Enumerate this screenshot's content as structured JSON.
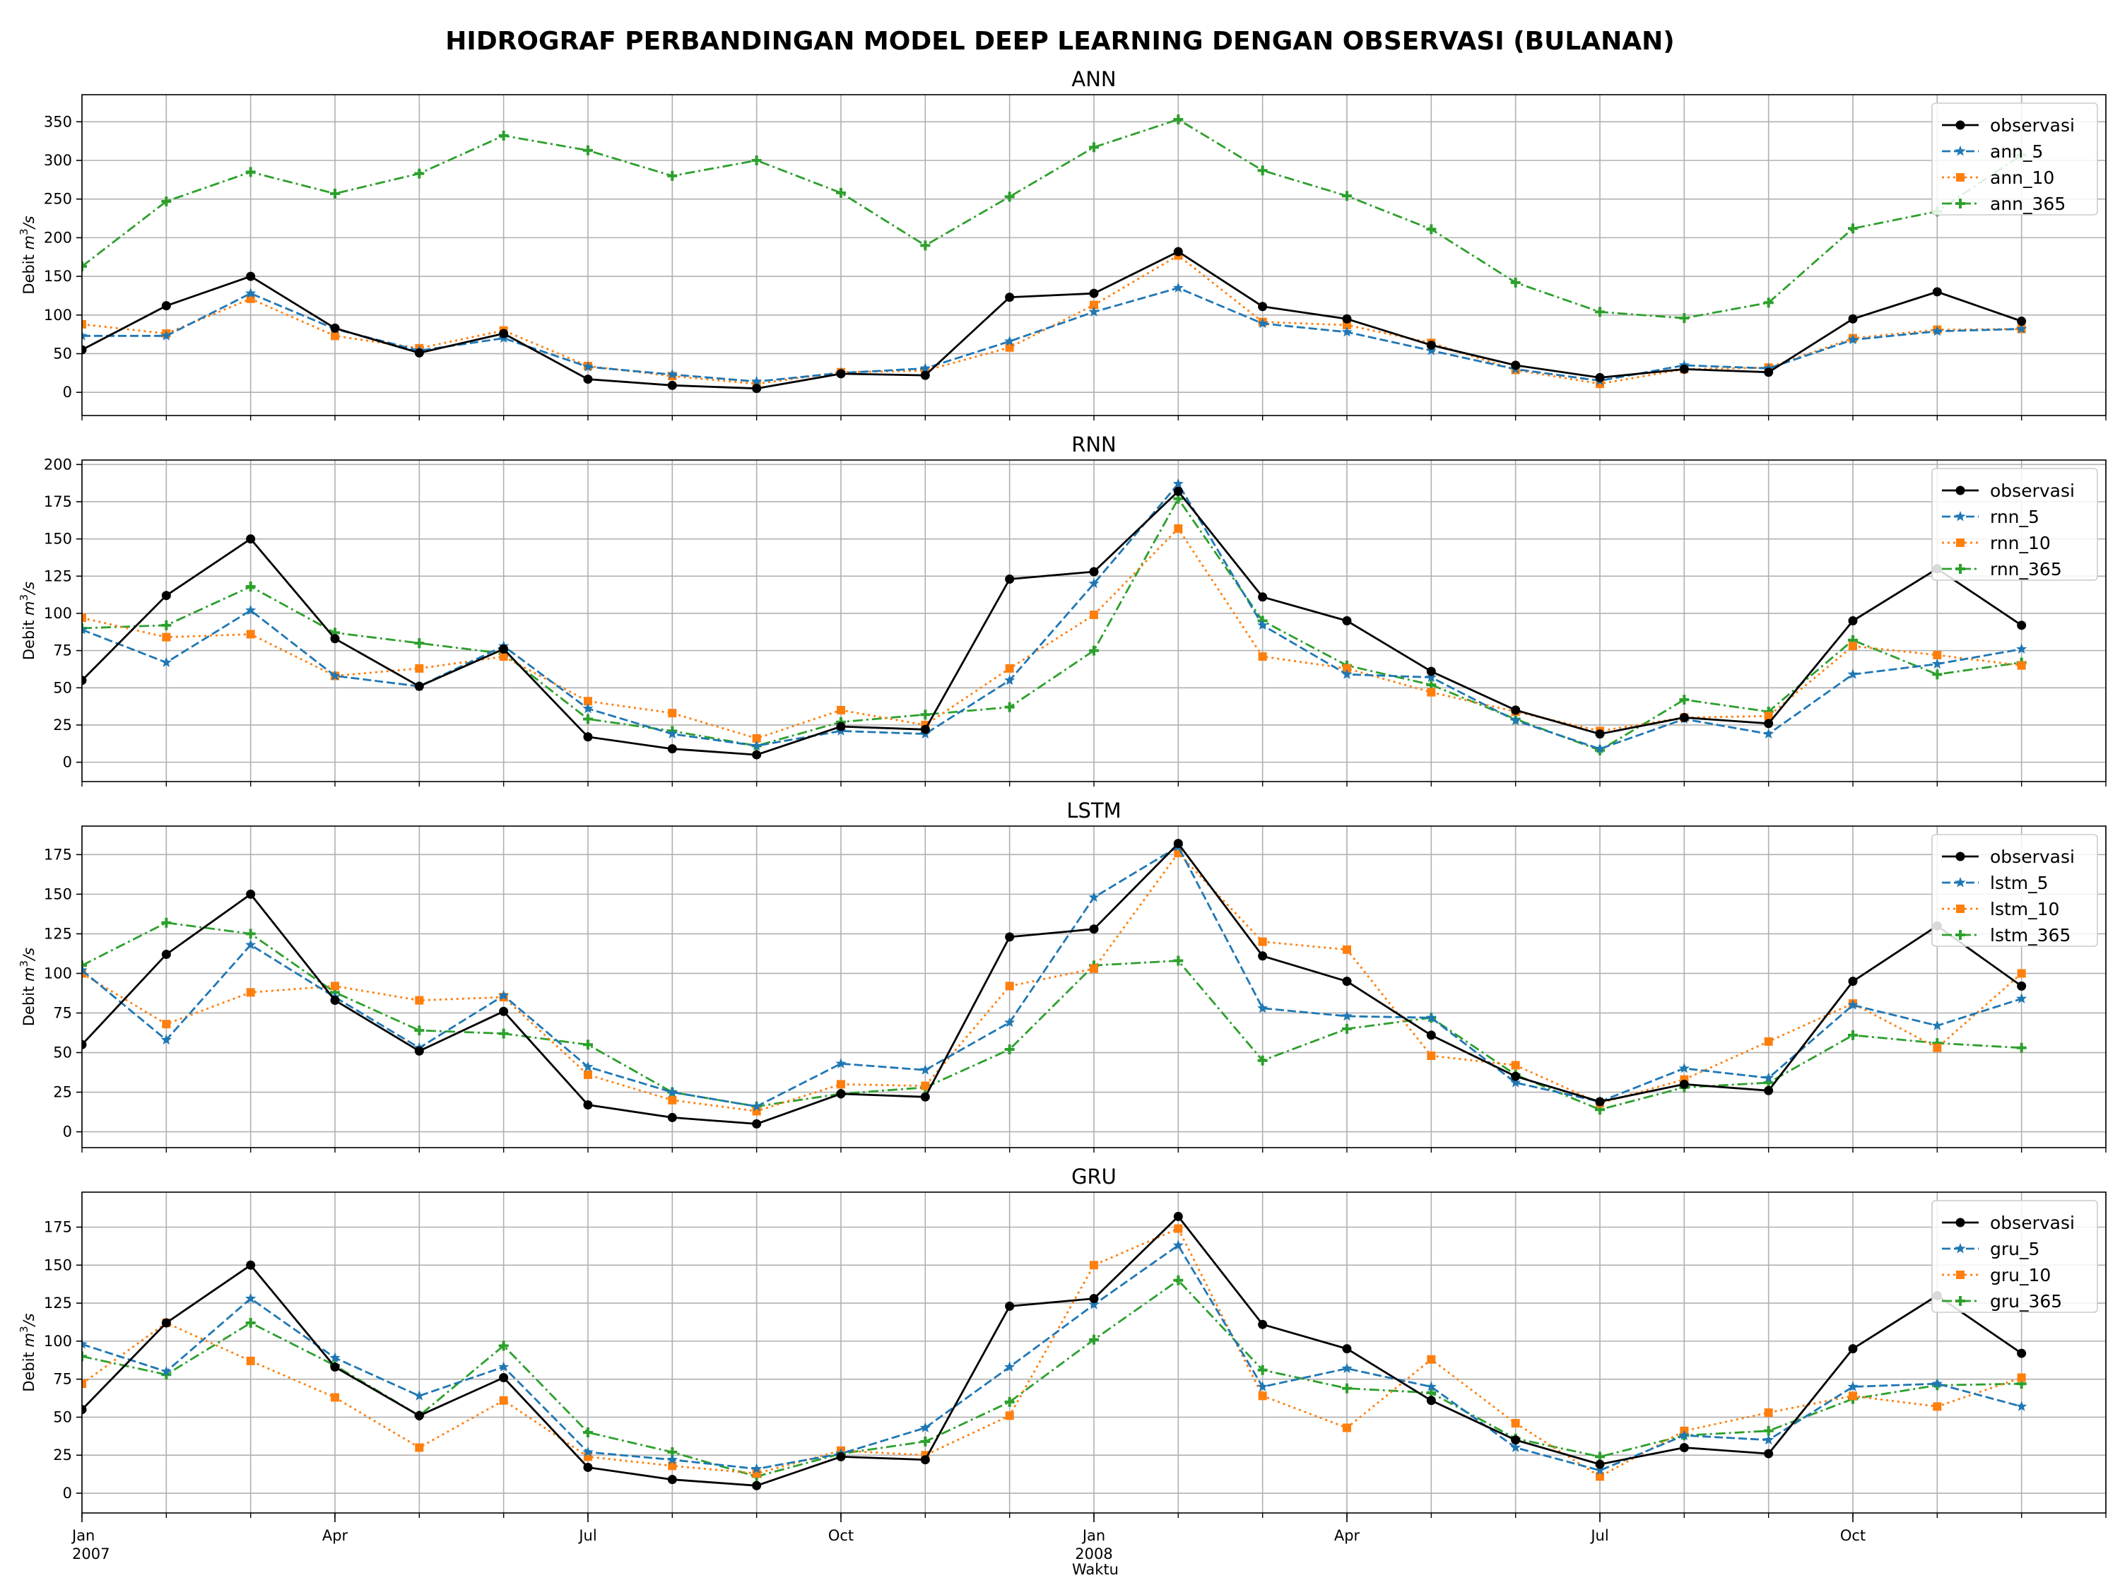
{
  "chart_data": {
    "title": "HIDROGRAF PERBANDINGAN MODEL DEEP LEARNING DENGAN OBSERVASI (BULANAN)",
    "xlabel": "Waktu",
    "x_months": [
      "2007-01",
      "2007-02",
      "2007-03",
      "2007-04",
      "2007-05",
      "2007-06",
      "2007-07",
      "2007-08",
      "2007-09",
      "2007-10",
      "2007-11",
      "2007-12",
      "2008-01",
      "2008-02",
      "2008-03",
      "2008-04",
      "2008-05",
      "2008-06",
      "2008-07",
      "2008-08",
      "2008-09",
      "2008-10",
      "2008-11",
      "2008-12"
    ],
    "x_tick_labels": [
      {
        "month": "2007-01",
        "label": "Jan",
        "sub": "2007"
      },
      {
        "month": "2007-04",
        "label": "Apr",
        "sub": ""
      },
      {
        "month": "2007-07",
        "label": "Jul",
        "sub": ""
      },
      {
        "month": "2007-10",
        "label": "Oct",
        "sub": ""
      },
      {
        "month": "2008-01",
        "label": "Jan",
        "sub": "2008"
      },
      {
        "month": "2008-04",
        "label": "Apr",
        "sub": ""
      },
      {
        "month": "2008-07",
        "label": "Jul",
        "sub": ""
      },
      {
        "month": "2008-10",
        "label": "Oct",
        "sub": ""
      }
    ],
    "colors": {
      "observasi": "#000000",
      "m5": "#1f77b4",
      "m10": "#ff7f0e",
      "m365": "#2ca02c"
    },
    "panels": [
      {
        "title": "ANN",
        "type": "line",
        "ylabel": "Debit m3/s",
        "ylim": [
          -30,
          385
        ],
        "yticks": [
          0,
          50,
          100,
          150,
          200,
          250,
          300,
          350
        ],
        "grid": true,
        "legend": "top-right",
        "series": [
          {
            "name": "observasi",
            "values": [
              55,
              112,
              150,
              83,
              51,
              76,
              17,
              9,
              5,
              24,
              22,
              123,
              128,
              182,
              111,
              95,
              61,
              35,
              19,
              30,
              26,
              95,
              130,
              92
            ]
          },
          {
            "name": "ann_5",
            "values": [
              73,
              73,
              128,
              82,
              54,
              70,
              33,
              23,
              14,
              25,
              31,
              66,
              104,
              135,
              89,
              78,
              54,
              30,
              15,
              35,
              31,
              68,
              79,
              82
            ]
          },
          {
            "name": "ann_10",
            "values": [
              88,
              76,
              121,
              73,
              57,
              80,
              34,
              21,
              11,
              26,
              28,
              58,
              113,
              177,
              91,
              87,
              64,
              29,
              11,
              30,
              32,
              70,
              81,
              82
            ]
          },
          {
            "name": "ann_365",
            "values": [
              163,
              247,
              285,
              257,
              283,
              332,
              313,
              280,
              300,
              258,
              190,
              253,
              317,
              353,
              287,
              254,
              211,
              142,
              104,
              96,
              116,
              212,
              234,
              307
            ]
          }
        ]
      },
      {
        "title": "RNN",
        "type": "line",
        "ylabel": "Debit m3/s",
        "ylim": [
          -13,
          203
        ],
        "yticks": [
          0,
          25,
          50,
          75,
          100,
          125,
          150,
          175,
          200
        ],
        "grid": true,
        "legend": "top-right",
        "series": [
          {
            "name": "observasi",
            "values": [
              55,
              112,
              150,
              83,
              51,
              76,
              17,
              9,
              5,
              24,
              22,
              123,
              128,
              182,
              111,
              95,
              61,
              35,
              19,
              30,
              26,
              95,
              130,
              92
            ]
          },
          {
            "name": "rnn_5",
            "values": [
              89,
              67,
              102,
              58,
              51,
              78,
              36,
              19,
              11,
              21,
              19,
              55,
              120,
              187,
              92,
              59,
              57,
              28,
              9,
              29,
              19,
              59,
              66,
              76
            ]
          },
          {
            "name": "rnn_10",
            "values": [
              97,
              84,
              86,
              58,
              63,
              71,
              41,
              33,
              16,
              35,
              25,
              63,
              99,
              157,
              71,
              63,
              47,
              34,
              21,
              30,
              31,
              78,
              72,
              65
            ]
          },
          {
            "name": "rnn_365",
            "values": [
              90,
              92,
              118,
              87,
              80,
              73,
              29,
              21,
              11,
              27,
              32,
              37,
              75,
              177,
              95,
              65,
              52,
              29,
              8,
              42,
              34,
              82,
              59,
              67
            ]
          }
        ]
      },
      {
        "title": "LSTM",
        "type": "line",
        "ylabel": "Debit m3/s",
        "ylim": [
          -10,
          193
        ],
        "yticks": [
          0,
          25,
          50,
          75,
          100,
          125,
          150,
          175
        ],
        "grid": true,
        "legend": "top-right",
        "series": [
          {
            "name": "observasi",
            "values": [
              55,
              112,
              150,
              83,
              51,
              76,
              17,
              9,
              5,
              24,
              22,
              123,
              128,
              182,
              111,
              95,
              61,
              35,
              19,
              30,
              26,
              95,
              130,
              92
            ]
          },
          {
            "name": "lstm_5",
            "values": [
              102,
              58,
              118,
              85,
              53,
              86,
              41,
              25,
              16,
              43,
              39,
              69,
              148,
              180,
              78,
              73,
              72,
              31,
              19,
              40,
              34,
              80,
              67,
              84
            ]
          },
          {
            "name": "lstm_10",
            "values": [
              100,
              68,
              88,
              92,
              83,
              85,
              36,
              20,
              13,
              30,
              29,
              92,
              103,
              176,
              120,
              115,
              48,
              42,
              18,
              33,
              57,
              81,
              53,
              100
            ]
          },
          {
            "name": "lstm_365",
            "values": [
              105,
              132,
              125,
              88,
              64,
              62,
              55,
              25,
              16,
              24,
              28,
              52,
              105,
              108,
              45,
              65,
              72,
              36,
              14,
              28,
              31,
              61,
              56,
              53
            ]
          }
        ]
      },
      {
        "title": "GRU",
        "type": "line",
        "ylabel": "Debit m3/s",
        "ylim": [
          -13,
          198
        ],
        "yticks": [
          0,
          25,
          50,
          75,
          100,
          125,
          150,
          175
        ],
        "grid": true,
        "legend": "top-right",
        "series": [
          {
            "name": "observasi",
            "values": [
              55,
              112,
              150,
              83,
              51,
              76,
              17,
              9,
              5,
              24,
              22,
              123,
              128,
              182,
              111,
              95,
              61,
              35,
              19,
              30,
              26,
              95,
              130,
              92
            ]
          },
          {
            "name": "gru_5",
            "values": [
              98,
              80,
              128,
              89,
              64,
              83,
              27,
              22,
              16,
              26,
              43,
              83,
              124,
              163,
              70,
              82,
              70,
              30,
              15,
              38,
              35,
              70,
              72,
              57
            ]
          },
          {
            "name": "gru_10",
            "values": [
              72,
              112,
              87,
              63,
              30,
              61,
              24,
              18,
              13,
              28,
              25,
              51,
              150,
              174,
              64,
              43,
              88,
              46,
              11,
              41,
              53,
              64,
              57,
              76
            ]
          },
          {
            "name": "gru_365",
            "values": [
              90,
              78,
              112,
              84,
              51,
              97,
              40,
              27,
              11,
              26,
              34,
              60,
              101,
              140,
              81,
              69,
              66,
              36,
              24,
              38,
              41,
              62,
              71,
              72
            ]
          }
        ]
      }
    ]
  }
}
